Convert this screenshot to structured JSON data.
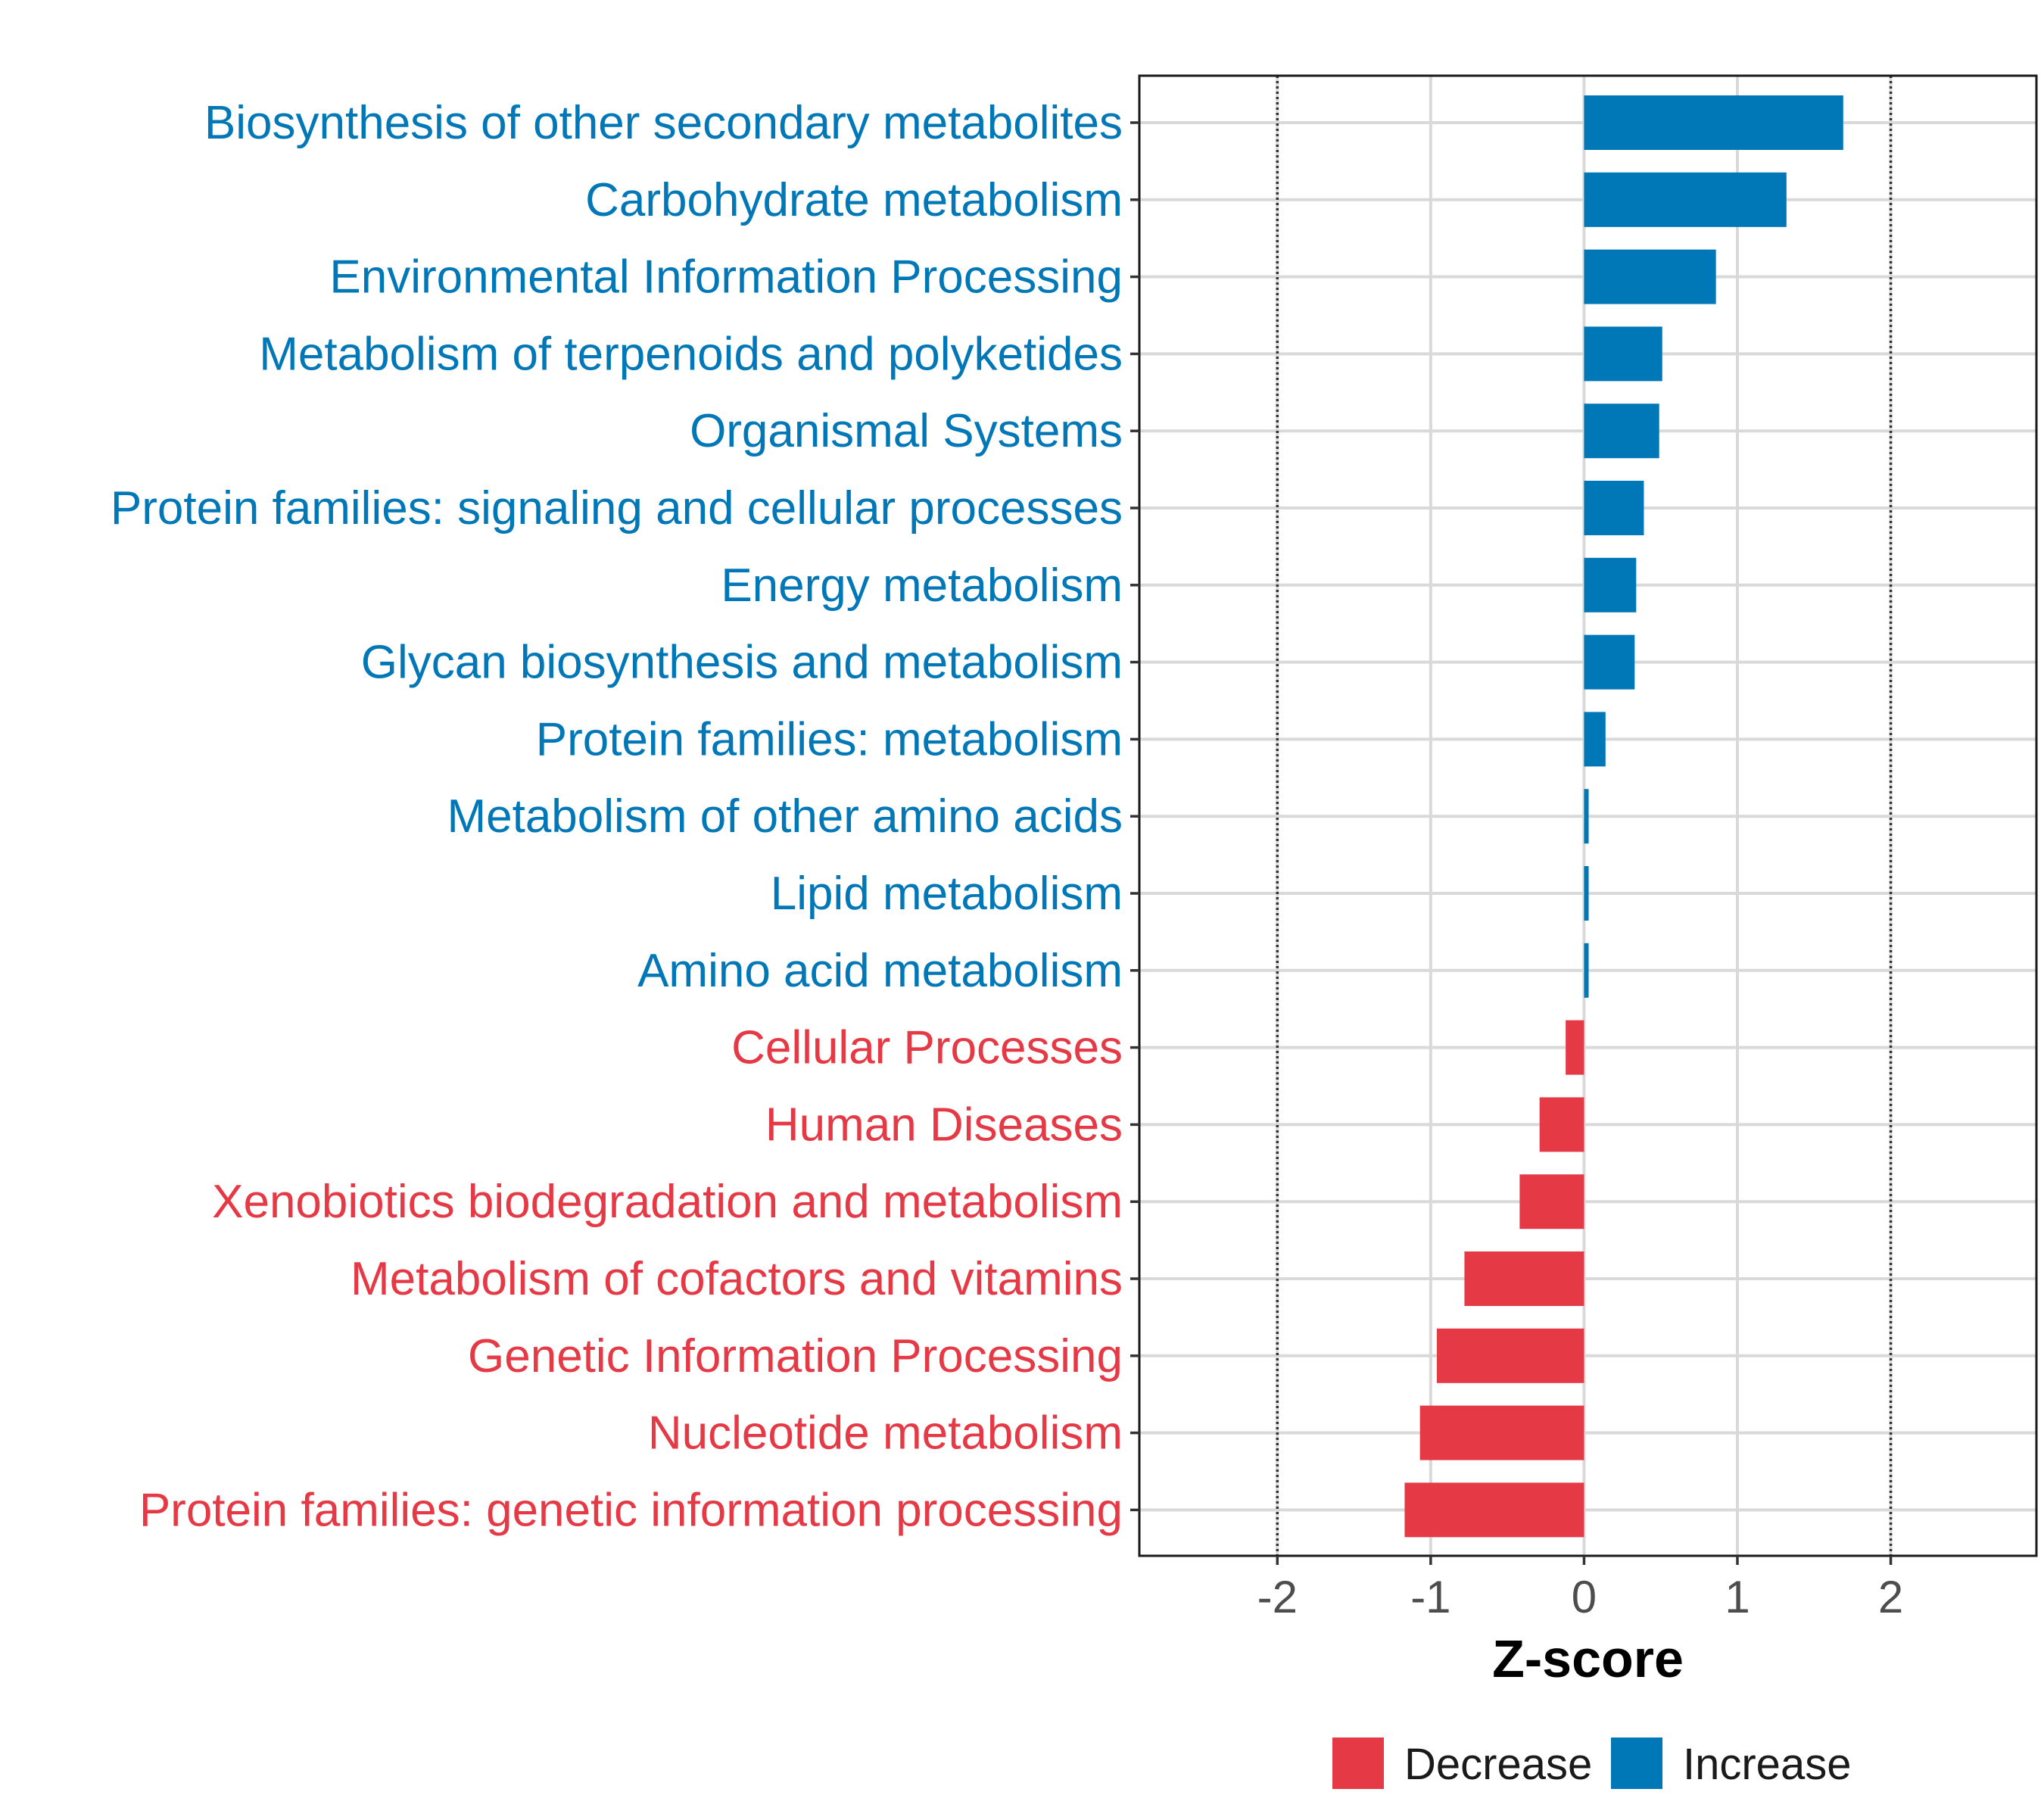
{
  "chart_data": {
    "type": "bar",
    "orientation": "horizontal",
    "xlabel": "Z-score",
    "xlim": [
      -2.9,
      2.95
    ],
    "xticks": [
      -2,
      -1,
      0,
      1,
      2
    ],
    "xtick_labels": [
      "-2",
      "-1",
      "0",
      "1",
      "2"
    ],
    "reference_lines": [
      -2,
      2
    ],
    "categories": [
      "Biosynthesis of other secondary metabolites",
      "Carbohydrate metabolism",
      "Environmental Information Processing",
      "Metabolism of terpenoids and polyketides",
      "Organismal Systems",
      "Protein families: signaling and cellular processes",
      "Energy metabolism",
      "Glycan biosynthesis and metabolism",
      "Protein families: metabolism",
      "Metabolism of other amino acids",
      "Lipid metabolism",
      "Amino acid metabolism",
      "Cellular Processes",
      "Human Diseases",
      "Xenobiotics biodegradation and metabolism",
      "Metabolism of cofactors and vitamins",
      "Genetic Information Processing",
      "Nucleotide metabolism",
      "Protein families: genetic information processing"
    ],
    "values": [
      1.69,
      1.32,
      0.86,
      0.51,
      0.49,
      0.39,
      0.34,
      0.33,
      0.14,
      0.03,
      0.03,
      0.03,
      -0.12,
      -0.29,
      -0.42,
      -0.78,
      -0.96,
      -1.07,
      -1.17
    ],
    "groups": [
      "Increase",
      "Increase",
      "Increase",
      "Increase",
      "Increase",
      "Increase",
      "Increase",
      "Increase",
      "Increase",
      "Increase",
      "Increase",
      "Increase",
      "Decrease",
      "Decrease",
      "Decrease",
      "Decrease",
      "Decrease",
      "Decrease",
      "Decrease"
    ],
    "legend": [
      {
        "name": "Decrease",
        "color": "#E63946"
      },
      {
        "name": "Increase",
        "color": "#0077B6"
      }
    ],
    "legend_position": "bottom",
    "grid": true
  }
}
